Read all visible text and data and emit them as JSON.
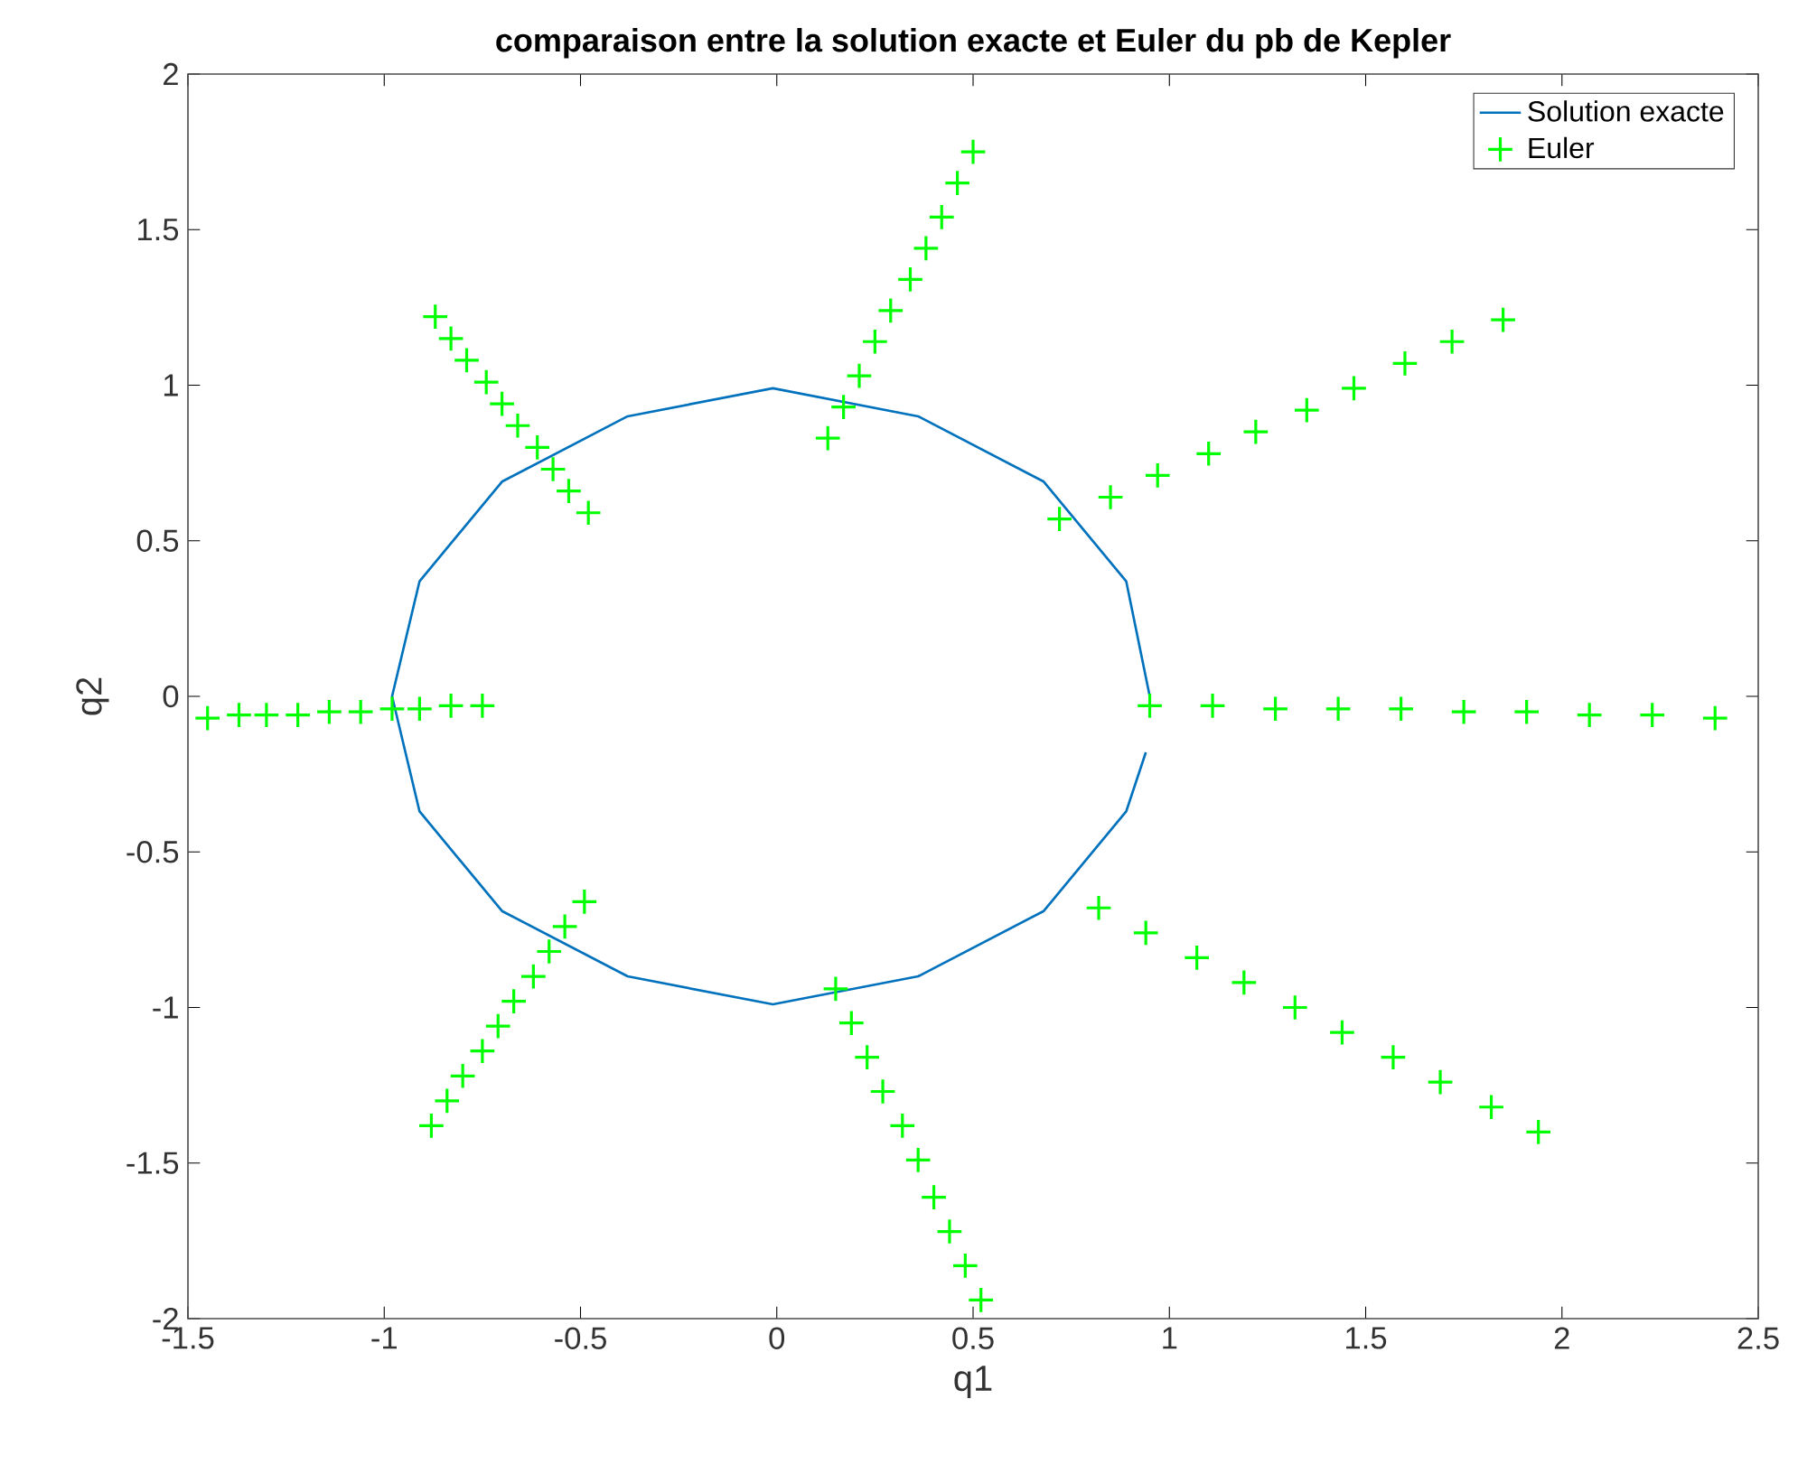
{
  "chart_data": {
    "type": "line",
    "title": "comparaison entre la solution exacte et Euler du pb de Kepler",
    "xlabel": "q1",
    "ylabel": "q2",
    "xlim": [
      -1.5,
      2.5
    ],
    "ylim": [
      -2,
      2
    ],
    "xticks": [
      -1.5,
      -1,
      -0.5,
      0,
      0.5,
      1,
      1.5,
      2,
      2.5
    ],
    "yticks": [
      -2,
      -1.5,
      -1,
      -0.5,
      0,
      0.5,
      1,
      1.5,
      2
    ],
    "grid": false,
    "legend": "top right",
    "series": [
      {
        "name": "Solution exacte",
        "color": "#0072bd",
        "marker": "none",
        "line_style": "solid",
        "x": [
          0.95,
          0.89,
          0.68,
          0.36,
          -0.01,
          -0.38,
          -0.7,
          -0.91,
          -0.98,
          -0.91,
          -0.7,
          -0.38,
          -0.01,
          0.36,
          0.68,
          0.89,
          0.94
        ],
        "values": [
          0,
          0.37,
          0.69,
          0.9,
          0.99,
          0.9,
          0.69,
          0.37,
          0,
          -0.37,
          -0.69,
          -0.9,
          -0.99,
          -0.9,
          -0.69,
          -0.37,
          -0.18
        ]
      },
      {
        "name": "Euler",
        "type": "scatter",
        "color": "#00ff00",
        "marker": "cross",
        "x": [
          0.95,
          0.72,
          0.13,
          -0.48,
          -0.75,
          -0.49,
          0.15,
          0.82,
          1.11,
          0.85,
          0.17,
          -0.53,
          -0.83,
          -0.54,
          0.19,
          0.94,
          1.27,
          0.97,
          0.21,
          -0.57,
          -0.91,
          -0.58,
          0.23,
          1.07,
          1.43,
          1.1,
          0.25,
          -0.61,
          -0.98,
          -0.62,
          0.27,
          1.19,
          1.59,
          1.22,
          0.29,
          -0.66,
          -1.06,
          -0.67,
          0.32,
          1.32,
          1.75,
          1.35,
          0.34,
          -0.7,
          -1.14,
          -0.71,
          0.36,
          1.44,
          1.91,
          1.47,
          0.38,
          -0.74,
          -1.22,
          -0.75,
          0.4,
          1.57,
          2.07,
          1.6,
          0.42,
          -0.79,
          -1.3,
          -0.8,
          0.44,
          1.69,
          2.23,
          1.72,
          0.46,
          -0.83,
          -1.37,
          -0.84,
          0.48,
          1.82,
          2.39,
          1.85,
          0.5,
          -0.87,
          -1.45,
          -0.88,
          0.52,
          1.94
        ],
        "values": [
          -0.03,
          0.57,
          0.83,
          0.59,
          -0.03,
          -0.66,
          -0.94,
          -0.68,
          -0.03,
          0.64,
          0.93,
          0.66,
          -0.03,
          -0.74,
          -1.05,
          -0.76,
          -0.04,
          0.71,
          1.03,
          0.73,
          -0.04,
          -0.82,
          -1.16,
          -0.84,
          -0.04,
          0.78,
          1.14,
          0.8,
          -0.04,
          -0.9,
          -1.27,
          -0.92,
          -0.04,
          0.85,
          1.24,
          0.87,
          -0.05,
          -0.98,
          -1.38,
          -1.0,
          -0.05,
          0.92,
          1.34,
          0.94,
          -0.05,
          -1.06,
          -1.49,
          -1.08,
          -0.05,
          0.99,
          1.44,
          1.01,
          -0.06,
          -1.14,
          -1.61,
          -1.16,
          -0.06,
          1.07,
          1.54,
          1.08,
          -0.06,
          -1.22,
          -1.72,
          -1.24,
          -0.06,
          1.14,
          1.65,
          1.15,
          -0.06,
          -1.3,
          -1.83,
          -1.32,
          -0.07,
          1.21,
          1.75,
          1.22,
          -0.07,
          -1.38,
          -1.94,
          -1.4
        ]
      }
    ]
  }
}
